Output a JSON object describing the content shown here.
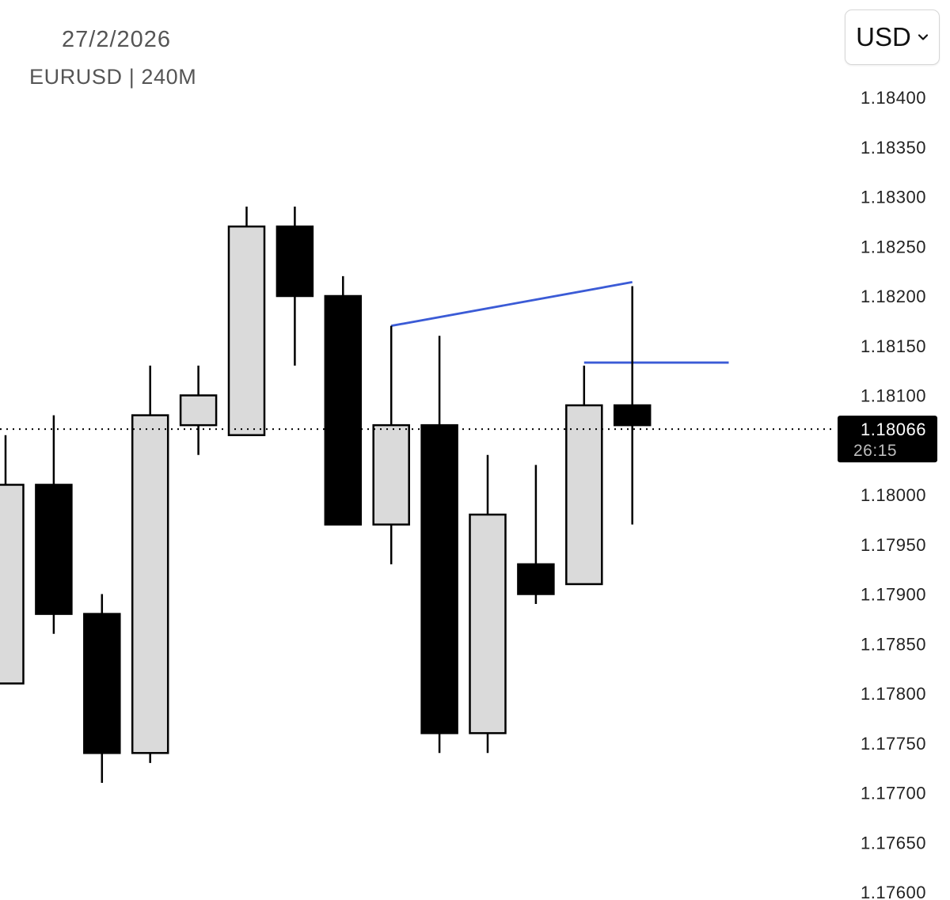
{
  "header": {
    "date": "27/2/2026",
    "symbol": "EURUSD | 240M"
  },
  "currency_selector": {
    "label": "USD"
  },
  "colors": {
    "bull_fill": "#dadada",
    "bear_fill": "#000000",
    "outline": "#000000",
    "trendline": "#3b5bd6",
    "price_tag_bg": "#000000"
  },
  "chart_data": {
    "type": "candlestick",
    "title": "",
    "symbol": "EURUSD",
    "timeframe": "240M",
    "ylim": [
      1.176,
      1.184
    ],
    "yticks": [
      "1.18400",
      "1.18350",
      "1.18300",
      "1.18250",
      "1.18200",
      "1.18150",
      "1.18100",
      "1.18000",
      "1.17950",
      "1.17900",
      "1.17850",
      "1.17800",
      "1.17750",
      "1.17700",
      "1.17650",
      "1.17600"
    ],
    "grid": false,
    "candles": [
      {
        "open": 1.1781,
        "high": 1.1806,
        "low": 1.1781,
        "close": 1.1801
      },
      {
        "open": 1.1801,
        "high": 1.1808,
        "low": 1.1786,
        "close": 1.1788
      },
      {
        "open": 1.1788,
        "high": 1.179,
        "low": 1.1771,
        "close": 1.1774
      },
      {
        "open": 1.1774,
        "high": 1.1813,
        "low": 1.1773,
        "close": 1.1808
      },
      {
        "open": 1.1807,
        "high": 1.1813,
        "low": 1.1804,
        "close": 1.181
      },
      {
        "open": 1.1806,
        "high": 1.1829,
        "low": 1.1806,
        "close": 1.1827
      },
      {
        "open": 1.1827,
        "high": 1.1829,
        "low": 1.1813,
        "close": 1.182
      },
      {
        "open": 1.182,
        "high": 1.1822,
        "low": 1.1797,
        "close": 1.1797
      },
      {
        "open": 1.1797,
        "high": 1.1817,
        "low": 1.1793,
        "close": 1.1807
      },
      {
        "open": 1.1807,
        "high": 1.1816,
        "low": 1.1774,
        "close": 1.1776
      },
      {
        "open": 1.1776,
        "high": 1.1804,
        "low": 1.1774,
        "close": 1.1798
      },
      {
        "open": 1.1793,
        "high": 1.1803,
        "low": 1.1789,
        "close": 1.179
      },
      {
        "open": 1.1791,
        "high": 1.1813,
        "low": 1.1791,
        "close": 1.1809
      },
      {
        "open": 1.1809,
        "high": 1.1821,
        "low": 1.1797,
        "close": 1.1807
      }
    ],
    "current_price": {
      "value": "1.18066",
      "countdown": "26:15",
      "level": 1.18066
    },
    "trendlines": [
      {
        "from": {
          "candle": 8,
          "price": 1.1817
        },
        "to": {
          "candle": 13,
          "price": 1.18214
        }
      },
      {
        "from": {
          "candle": 12,
          "price": 1.18133
        },
        "to": {
          "candle": 15,
          "price": 1.18133
        }
      }
    ]
  }
}
